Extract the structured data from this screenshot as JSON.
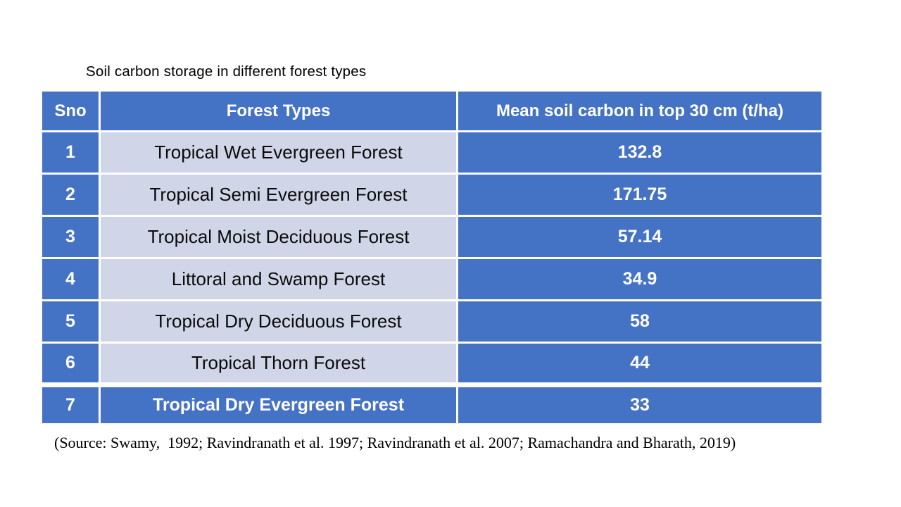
{
  "title": "Soil carbon storage in different forest types",
  "table": {
    "headers": [
      "Sno",
      "Forest Types",
      "Mean soil carbon in top 30 cm (t/ha)"
    ],
    "rows": [
      {
        "sno": "1",
        "forest": "Tropical Wet Evergreen Forest",
        "carbon": "132.8"
      },
      {
        "sno": "2",
        "forest": "Tropical Semi Evergreen Forest",
        "carbon": "171.75"
      },
      {
        "sno": "3",
        "forest": "Tropical Moist Deciduous Forest",
        "carbon": "57.14"
      },
      {
        "sno": "4",
        "forest": "Littoral and Swamp Forest",
        "carbon": "34.9"
      },
      {
        "sno": "5",
        "forest": "Tropical Dry Deciduous Forest",
        "carbon": "58"
      },
      {
        "sno": "6",
        "forest": "Tropical Thorn Forest",
        "carbon": "44"
      },
      {
        "sno": "7",
        "forest": "Tropical Dry Evergreen Forest",
        "carbon": "33"
      }
    ]
  },
  "source": "(Source: Swamy,  1992; Ravindranath et al. 1997; Ravindranath et al. 2007; Ramachandra and Bharath, 2019)",
  "colors": {
    "header_blue": "#4472C4",
    "light_row": "#D0D6E8",
    "border": "#FFFFFF",
    "body_text": "#000000"
  }
}
